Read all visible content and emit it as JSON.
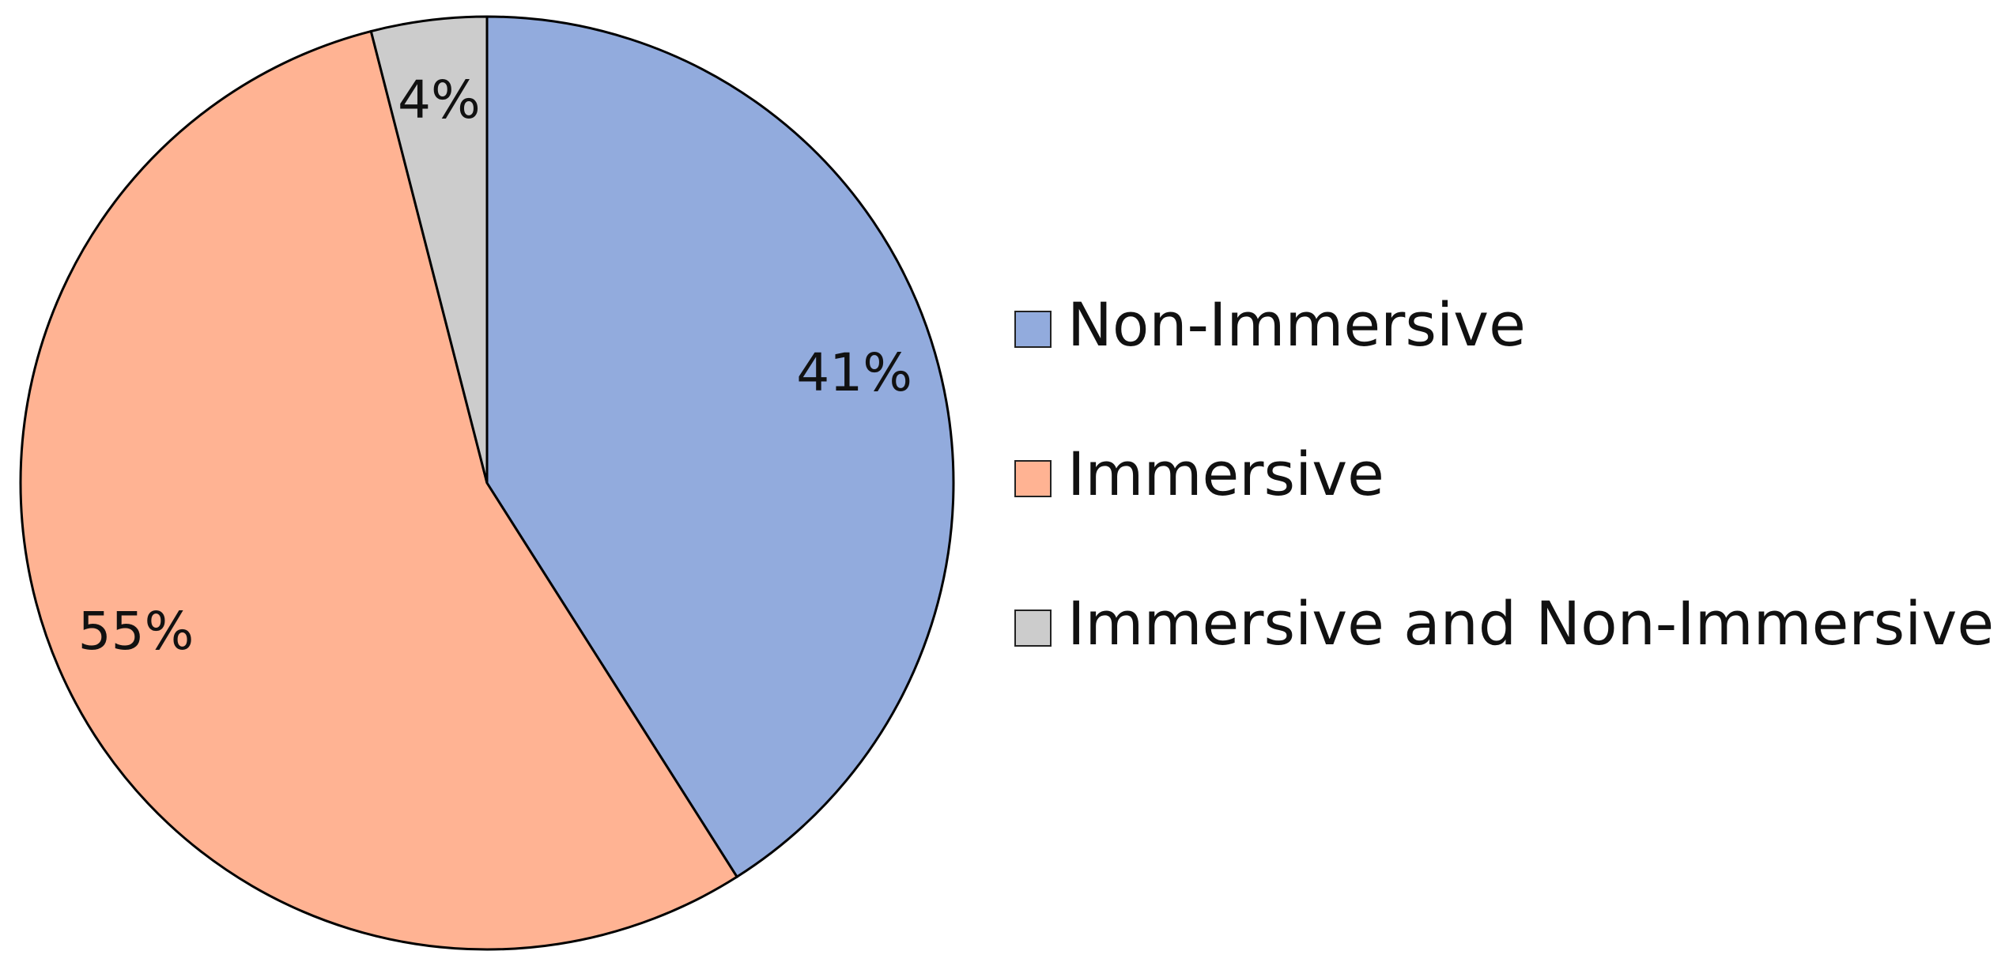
{
  "chart_data": {
    "type": "pie",
    "categories": [
      "Non-Immersive",
      "Immersive",
      "Immersive and Non-Immersive"
    ],
    "values": [
      41,
      55,
      4
    ],
    "value_labels": [
      "41%",
      "55%",
      "4%"
    ],
    "colors": [
      "#92abdd",
      "#ffb393",
      "#cccccc"
    ],
    "start_angle": 0,
    "direction": "clockwise",
    "legend": "right"
  }
}
